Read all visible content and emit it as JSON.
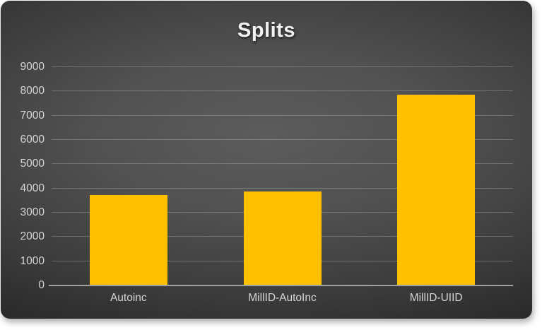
{
  "chart_data": {
    "type": "bar",
    "title": "Splits",
    "categories": [
      "Autoinc",
      "MillID-AutoInc",
      "MillID-UIID"
    ],
    "values": [
      3730,
      3860,
      7870
    ],
    "xlabel": "",
    "ylabel": "",
    "ylim": [
      0,
      9000
    ],
    "ytick_step": 1000,
    "ytick_labels": [
      "0",
      "1000",
      "2000",
      "3000",
      "4000",
      "5000",
      "6000",
      "7000",
      "8000",
      "9000"
    ],
    "grid": true,
    "legend": false,
    "bar_color": "#FFC000",
    "tick_label_color": "#d6d6d6",
    "title_color": "#f2f2f2",
    "gridline_color": "rgba(255,255,255,0.22)",
    "axis_line_color": "#a0a0a0",
    "background_center": "#5c5c5c",
    "background_edge": "#1b1b1b"
  }
}
